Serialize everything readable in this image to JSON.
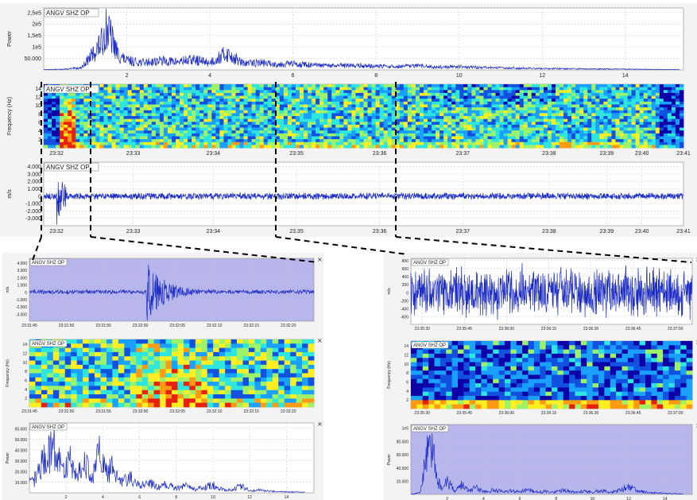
{
  "station": "ANGV SHZ OP",
  "close_glyph": "×",
  "colors": {
    "trace": "#1b2bc4",
    "violet_bg": "#b7b6ec",
    "zoom_lines": "#000000",
    "spec_bg": "#0c00a6"
  },
  "chart_data": [
    {
      "id": "top-power",
      "type": "line",
      "title": "ANGV SHZ OP",
      "ylabel": "Power",
      "xticks": [
        "2",
        "4",
        "6",
        "8",
        "10",
        "12",
        "14"
      ],
      "xlim": [
        0,
        15.4
      ],
      "ylim": [
        0,
        270000
      ],
      "yticks": [
        "50.000",
        "1e5",
        "1,5e5",
        "2e5",
        "2,5e5"
      ],
      "ytick_values": [
        50000,
        100000,
        150000,
        200000,
        250000
      ],
      "grid": true,
      "x": [
        0.1,
        0.5,
        0.9,
        1.2,
        1.4,
        1.5,
        1.6,
        1.7,
        1.8,
        2.0,
        2.4,
        2.8,
        3.2,
        3.6,
        4.0,
        4.4,
        4.8,
        5.2,
        5.6,
        6.0,
        6.5,
        7.0,
        7.5,
        8.0,
        8.5,
        9.0,
        9.5,
        10.0,
        10.5,
        11.0,
        11.5,
        12.0,
        12.5,
        13.0,
        13.5,
        14.0,
        14.5,
        15.0,
        15.3
      ],
      "values": [
        2000,
        4000,
        12000,
        90000,
        150000,
        230000,
        190000,
        130000,
        80000,
        50000,
        40000,
        50000,
        45000,
        55000,
        40000,
        90000,
        35000,
        40000,
        30000,
        35000,
        25000,
        22000,
        25000,
        20000,
        18000,
        22000,
        15000,
        18000,
        13000,
        12000,
        10000,
        8000,
        7000,
        6000,
        5000,
        4000,
        3000,
        2500,
        2000
      ]
    },
    {
      "id": "top-spectrogram",
      "type": "heatmap",
      "title": "ANGV SHZ OP",
      "ylabel": "Frequency (Hz)",
      "yticks": [
        "2",
        "4",
        "6",
        "8",
        "10",
        "12",
        "14"
      ],
      "ylim": [
        0,
        15
      ],
      "xticks": [
        "23:32",
        "23:33",
        "23:34",
        "23:35",
        "23:36",
        "23:37",
        "23:38",
        "23:39",
        "23:40",
        "23:41"
      ],
      "palette": [
        "#0c00a6",
        "#1250e0",
        "#1aa0ff",
        "#2ee6dc",
        "#9df26a",
        "#ffee22",
        "#ff9a14",
        "#e82010"
      ]
    },
    {
      "id": "top-velocity",
      "type": "line",
      "title": "ANGV SHZ OP",
      "ylabel": "m/s",
      "yticks": [
        "4.000",
        "3.000",
        "2.000",
        "1.000",
        "0",
        "-1.000",
        "-2.000",
        "-3.000"
      ],
      "ytick_values": [
        4000,
        3000,
        2000,
        1000,
        0,
        -1000,
        -2000,
        -3000
      ],
      "ylim": [
        -4000,
        4600
      ],
      "xticks": [
        "23:32",
        "23:33",
        "23:34",
        "23:35",
        "23:36",
        "23:37",
        "23:38",
        "23:39",
        "23:40",
        "23:41"
      ],
      "grid": true
    },
    {
      "id": "zoom1-velocity",
      "type": "line",
      "title": "ANGV SHZ OP",
      "ylabel": "m/s",
      "yticks": [
        "4.000",
        "3.000",
        "2.000",
        "1.000",
        "0",
        "-1.000",
        "-2.000",
        "-3.000"
      ],
      "ytick_values": [
        4000,
        3000,
        2000,
        1000,
        0,
        -1000,
        -2000,
        -3000
      ],
      "ylim": [
        -4000,
        4600
      ],
      "xticks": [
        "23:31:45",
        "23:31:50",
        "23:31:55",
        "23:32:00",
        "23:32:05",
        "23:32:10",
        "23:32:15",
        "23:32:20"
      ],
      "grid": true
    },
    {
      "id": "zoom1-spectrogram",
      "type": "heatmap",
      "title": "ANGV SHZ OP",
      "ylabel": "Frequency (Hz)",
      "yticks": [
        "2",
        "4",
        "6",
        "8",
        "10",
        "12",
        "14"
      ],
      "ylim": [
        0,
        15
      ],
      "xticks": [
        "23:31:45",
        "23:31:50",
        "23:31:55",
        "23:32:00",
        "23:32:05",
        "23:32:10",
        "23:32:15",
        "23:32:20"
      ]
    },
    {
      "id": "zoom1-power",
      "type": "line",
      "title": "ANGV SHZ OP",
      "ylabel": "Power",
      "yticks": [
        "10.000",
        "20.000",
        "30.000",
        "40.000",
        "50.000",
        "60.000"
      ],
      "ytick_values": [
        10000,
        20000,
        30000,
        40000,
        50000,
        60000
      ],
      "ylim": [
        0,
        65000
      ],
      "xticks": [
        "2",
        "4",
        "6",
        "8",
        "10",
        "12",
        "14"
      ],
      "xlim": [
        0,
        15.5
      ],
      "grid": true,
      "x": [
        0.2,
        0.6,
        1.0,
        1.3,
        1.6,
        1.9,
        2.2,
        2.6,
        3.0,
        3.4,
        3.8,
        4.2,
        4.6,
        5.0,
        5.5,
        6.0,
        6.5,
        7.0,
        7.5,
        8.0,
        8.5,
        9.0,
        9.5,
        10.0,
        10.5,
        11.0,
        11.5,
        12.0,
        12.5,
        13.0,
        13.5,
        14.0,
        14.5,
        15.0
      ],
      "values": [
        12000,
        30000,
        45000,
        58000,
        35000,
        25000,
        40000,
        20000,
        38000,
        15000,
        45000,
        22000,
        30000,
        12000,
        18000,
        8000,
        12000,
        6000,
        10000,
        5000,
        8000,
        4000,
        6000,
        9000,
        4000,
        3000,
        8000,
        2500,
        3000,
        2000,
        1500,
        1200,
        1000,
        800
      ]
    },
    {
      "id": "zoom2-velocity",
      "type": "line",
      "title": "ANGV SHZ OP",
      "ylabel": "m/s",
      "yticks": [
        "800",
        "600",
        "400",
        "200",
        "0",
        "-200",
        "-400",
        "-600"
      ],
      "ytick_values": [
        800,
        600,
        400,
        200,
        0,
        -200,
        -400,
        -600
      ],
      "ylim": [
        -800,
        850
      ],
      "xticks": [
        "23:35:30",
        "23:35:45",
        "23:36:00",
        "23:36:15",
        "23:36:30",
        "23:36:45",
        "23:37:00"
      ],
      "grid": true
    },
    {
      "id": "zoom2-spectrogram",
      "type": "heatmap",
      "title": "ANGV SHZ OP",
      "ylabel": "Frequency (Hz)",
      "yticks": [
        "2",
        "4",
        "6",
        "8",
        "10",
        "12",
        "14"
      ],
      "ylim": [
        0,
        15
      ],
      "xticks": [
        "23:35:30",
        "23:35:45",
        "23:36:00",
        "23:36:15",
        "23:36:30",
        "23:36:45",
        "23:37:00"
      ]
    },
    {
      "id": "zoom2-power",
      "type": "line",
      "title": "ANGV SHZ OP",
      "ylabel": "Power",
      "yticks": [
        "20.000",
        "40.000",
        "60.000",
        "80.000",
        "1e5"
      ],
      "ytick_values": [
        20000,
        40000,
        60000,
        80000,
        100000
      ],
      "ylim": [
        0,
        105000
      ],
      "xticks": [
        "2",
        "4",
        "6",
        "8",
        "10",
        "12",
        "14"
      ],
      "xlim": [
        0,
        15.5
      ],
      "grid": true,
      "x": [
        0.1,
        0.5,
        0.8,
        1.0,
        1.2,
        1.4,
        1.7,
        2.0,
        2.4,
        2.8,
        3.2,
        3.6,
        4.0,
        4.5,
        5.0,
        5.5,
        6.0,
        6.5,
        7.0,
        7.5,
        8.0,
        8.5,
        9.0,
        9.5,
        10.0,
        10.5,
        11.0,
        11.5,
        12.0,
        12.5,
        13.0,
        13.5,
        14.0,
        14.5,
        15.0
      ],
      "values": [
        1000,
        3000,
        60000,
        98000,
        100000,
        30000,
        10000,
        25000,
        8000,
        18000,
        6000,
        12000,
        5000,
        8000,
        6000,
        7000,
        5000,
        9000,
        4000,
        6000,
        5000,
        8000,
        4000,
        6000,
        5000,
        7000,
        4000,
        8000,
        15000,
        6000,
        4000,
        3000,
        2000,
        1500,
        1000
      ]
    }
  ]
}
